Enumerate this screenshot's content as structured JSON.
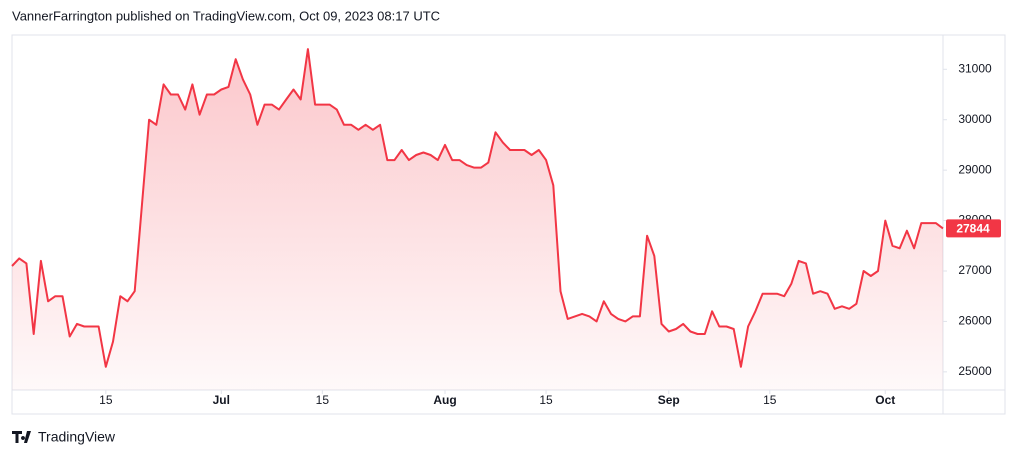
{
  "chart_data": {
    "type": "line",
    "title": "VannerFarrington published on TradingView.com, Oct 09, 2023 08:17 UTC",
    "source": "TradingView",
    "color": "#f23645",
    "grid": false,
    "x": [
      "2023-06-02",
      "2023-06-03",
      "2023-06-04",
      "2023-06-05",
      "2023-06-06",
      "2023-06-07",
      "2023-06-08",
      "2023-06-09",
      "2023-06-10",
      "2023-06-11",
      "2023-06-12",
      "2023-06-13",
      "2023-06-14",
      "2023-06-15",
      "2023-06-16",
      "2023-06-17",
      "2023-06-18",
      "2023-06-19",
      "2023-06-20",
      "2023-06-21",
      "2023-06-22",
      "2023-06-23",
      "2023-06-24",
      "2023-06-25",
      "2023-06-26",
      "2023-06-27",
      "2023-06-28",
      "2023-06-29",
      "2023-06-30",
      "2023-07-01",
      "2023-07-02",
      "2023-07-03",
      "2023-07-04",
      "2023-07-05",
      "2023-07-06",
      "2023-07-07",
      "2023-07-08",
      "2023-07-09",
      "2023-07-10",
      "2023-07-11",
      "2023-07-12",
      "2023-07-13",
      "2023-07-14",
      "2023-07-15",
      "2023-07-16",
      "2023-07-17",
      "2023-07-18",
      "2023-07-19",
      "2023-07-20",
      "2023-07-21",
      "2023-07-22",
      "2023-07-23",
      "2023-07-24",
      "2023-07-25",
      "2023-07-26",
      "2023-07-27",
      "2023-07-28",
      "2023-07-29",
      "2023-07-30",
      "2023-07-31",
      "2023-08-01",
      "2023-08-02",
      "2023-08-03",
      "2023-08-04",
      "2023-08-05",
      "2023-08-06",
      "2023-08-07",
      "2023-08-08",
      "2023-08-09",
      "2023-08-10",
      "2023-08-11",
      "2023-08-12",
      "2023-08-13",
      "2023-08-14",
      "2023-08-15",
      "2023-08-16",
      "2023-08-17",
      "2023-08-18",
      "2023-08-19",
      "2023-08-20",
      "2023-08-21",
      "2023-08-22",
      "2023-08-23",
      "2023-08-24",
      "2023-08-25",
      "2023-08-26",
      "2023-08-27",
      "2023-08-28",
      "2023-08-29",
      "2023-08-30",
      "2023-08-31",
      "2023-09-01",
      "2023-09-02",
      "2023-09-03",
      "2023-09-04",
      "2023-09-05",
      "2023-09-06",
      "2023-09-07",
      "2023-09-08",
      "2023-09-09",
      "2023-09-10",
      "2023-09-11",
      "2023-09-12",
      "2023-09-13",
      "2023-09-14",
      "2023-09-15",
      "2023-09-16",
      "2023-09-17",
      "2023-09-18",
      "2023-09-19",
      "2023-09-20",
      "2023-09-21",
      "2023-09-22",
      "2023-09-23",
      "2023-09-24",
      "2023-09-25",
      "2023-09-26",
      "2023-09-27",
      "2023-09-28",
      "2023-09-29",
      "2023-09-30",
      "2023-10-01",
      "2023-10-02",
      "2023-10-03",
      "2023-10-04",
      "2023-10-05",
      "2023-10-06",
      "2023-10-07",
      "2023-10-08",
      "2023-10-09"
    ],
    "values": [
      27100,
      27250,
      27150,
      25750,
      27200,
      26400,
      26500,
      26500,
      25700,
      25950,
      25900,
      25900,
      25900,
      25100,
      25600,
      26500,
      26400,
      26600,
      28300,
      30000,
      29900,
      30700,
      30500,
      30500,
      30200,
      30700,
      30100,
      30500,
      30500,
      30600,
      30650,
      31200,
      30800,
      30500,
      29900,
      30300,
      30300,
      30200,
      30400,
      30600,
      30400,
      31400,
      30300,
      30300,
      30300,
      30200,
      29900,
      29900,
      29800,
      29900,
      29800,
      29900,
      29200,
      29200,
      29400,
      29200,
      29300,
      29350,
      29300,
      29200,
      29500,
      29200,
      29200,
      29100,
      29050,
      29050,
      29150,
      29750,
      29550,
      29400,
      29400,
      29400,
      29300,
      29400,
      29200,
      28700,
      26600,
      26050,
      26100,
      26150,
      26100,
      26000,
      26400,
      26150,
      26050,
      26000,
      26100,
      26100,
      27700,
      27300,
      25950,
      25800,
      25850,
      25950,
      25800,
      25750,
      25750,
      26200,
      25900,
      25900,
      25850,
      25100,
      25900,
      26200,
      26550,
      26550,
      26550,
      26500,
      26750,
      27200,
      27150,
      26550,
      26600,
      26550,
      26250,
      26300,
      26250,
      26350,
      27000,
      26900,
      27000,
      28000,
      27500,
      27450,
      27800,
      27450,
      27950,
      27950,
      27950,
      27844
    ],
    "xlim": [
      "2023-06-02",
      "2023-10-09"
    ],
    "xticks": [
      {
        "value": "2023-06-15",
        "label": "15"
      },
      {
        "value": "2023-07-01",
        "label": "Jul"
      },
      {
        "value": "2023-07-15",
        "label": "15"
      },
      {
        "value": "2023-08-01",
        "label": "Aug"
      },
      {
        "value": "2023-08-15",
        "label": "15"
      },
      {
        "value": "2023-09-01",
        "label": "Sep"
      },
      {
        "value": "2023-09-15",
        "label": "15"
      },
      {
        "value": "2023-10-01",
        "label": "Oct"
      }
    ],
    "ylim": [
      24640,
      31680
    ],
    "yticks": [
      25000,
      26000,
      27000,
      28000,
      29000,
      30000,
      31000
    ]
  }
}
